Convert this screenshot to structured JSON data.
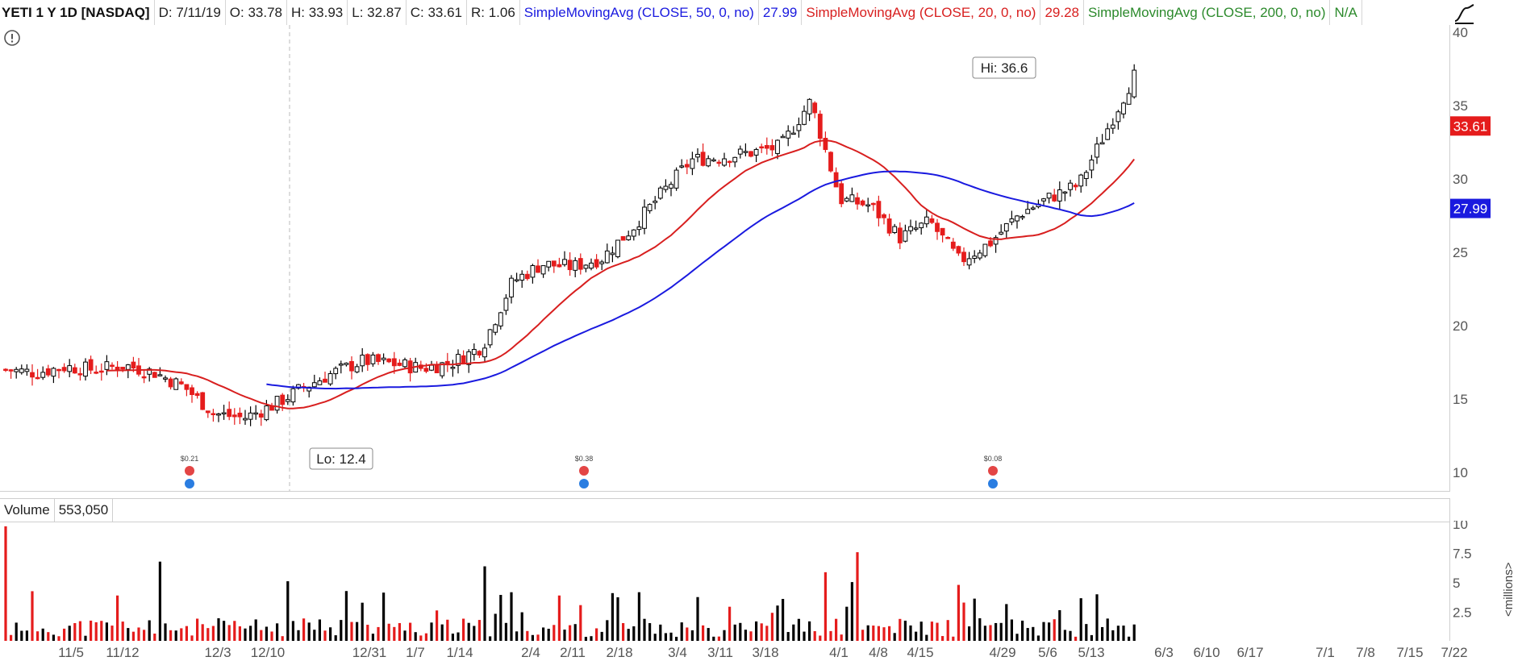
{
  "header": {
    "symbol": "YETI 1 Y 1D [NASDAQ]",
    "date": "D: 7/11/19",
    "open": "O: 33.78",
    "high": "H: 33.93",
    "low": "L: 32.87",
    "close": "C: 33.61",
    "range": "R: 1.06",
    "sma50_label": "SimpleMovingAvg (CLOSE, 50, 0, no)",
    "sma50_value": "27.99",
    "sma20_label": "SimpleMovingAvg (CLOSE, 20, 0, no)",
    "sma20_value": "29.28",
    "sma200_label": "SimpleMovingAvg (CLOSE, 200, 0, no)",
    "sma200_value": "N/A"
  },
  "volume_pane": {
    "label": "Volume",
    "value": "553,050",
    "unit_label": "<millions>"
  },
  "colors": {
    "up": "#000000",
    "down": "#e51c1c",
    "sma50": "#1a1adf",
    "sma20": "#d81f1f",
    "sma200": "#2c8a2c",
    "last_price_badge": "#e51c1c",
    "sma50_badge": "#1a1adf"
  },
  "icons": {
    "alert": "alert-circle-icon",
    "corner": "chart-style-icon",
    "dividend": "dividend-icon",
    "earnings": "earnings-icon"
  },
  "chart_data": [
    {
      "type": "candlestick",
      "title": "YETI 1 Y 1D [NASDAQ]",
      "ylim": [
        10,
        40
      ],
      "y_ticks": [
        "10",
        "15",
        "20",
        "25",
        "30",
        "35",
        "40"
      ],
      "x_ticks": [
        "11/5",
        "11/12",
        "12/3",
        "12/10",
        "12/31",
        "1/7",
        "1/14",
        "2/4",
        "2/11",
        "2/18",
        "3/4",
        "3/11",
        "3/18",
        "4/1",
        "4/8",
        "4/15",
        "4/29",
        "5/6",
        "5/13",
        "6/3",
        "6/10",
        "6/17",
        "7/1",
        "7/8",
        "7/15",
        "7/22"
      ],
      "weekly_closes": [
        17.0,
        16.8,
        17.2,
        17.0,
        17.3,
        16.8,
        15.8,
        14.0,
        13.7,
        14.6,
        15.8,
        16.8,
        17.6,
        17.4,
        17.1,
        17.5,
        18.6,
        23.0,
        24.2,
        24.0,
        24.6,
        26.6,
        29.0,
        31.3,
        31.5,
        31.8,
        32.2,
        35.3,
        28.6,
        28.2,
        26.0,
        27.1,
        24.4,
        25.6,
        27.6,
        28.7,
        29.6,
        33.6
      ],
      "last_price": "33.61",
      "sma50_last": "27.99",
      "annotations": {
        "high": "Hi: 36.6",
        "low": "Lo: 12.4"
      },
      "dividends": [
        {
          "date": "11/26",
          "amount": "$0.21"
        },
        {
          "date": "2/12",
          "amount": "$0.38"
        },
        {
          "date": "4/26",
          "amount": "$0.08"
        }
      ],
      "series": [
        {
          "name": "SimpleMovingAvg (CLOSE, 50, 0, no)",
          "last": 27.99
        },
        {
          "name": "SimpleMovingAvg (CLOSE, 20, 0, no)",
          "last": 29.28
        }
      ]
    },
    {
      "type": "bar",
      "ylim": [
        0,
        10
      ],
      "y_ticks": [
        "0",
        "2.5",
        "5",
        "7.5",
        "10"
      ],
      "ylabel": "<millions>"
    }
  ]
}
